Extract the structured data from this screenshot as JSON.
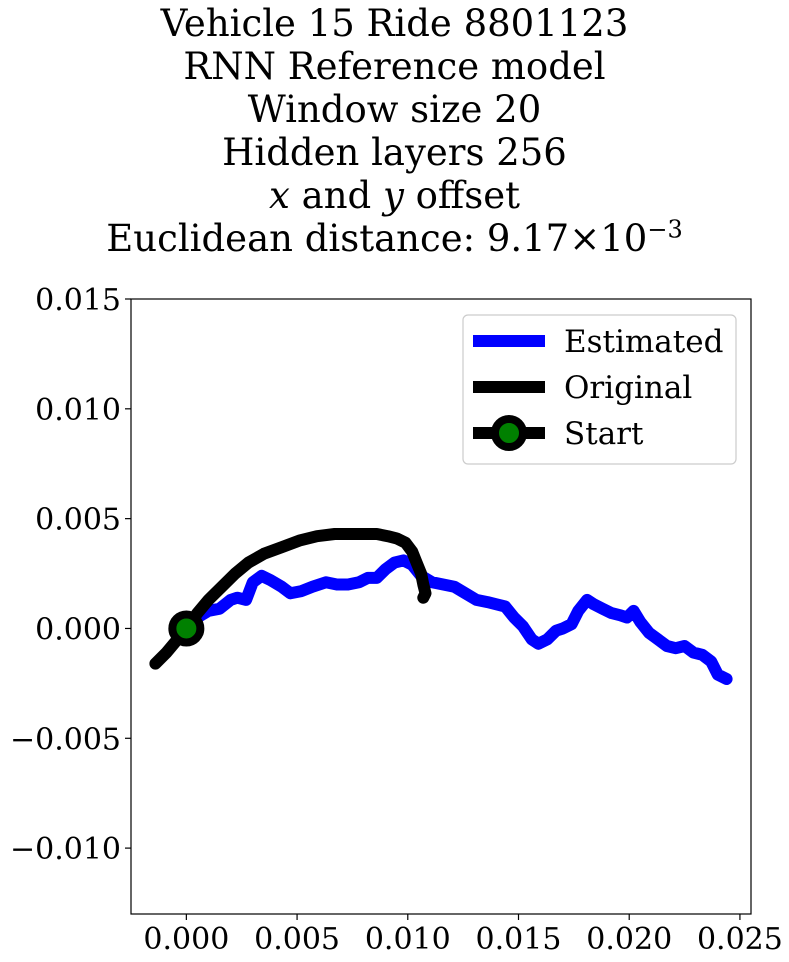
{
  "chart_data": {
    "type": "line",
    "title_lines": [
      "Vehicle 15 Ride 8801123",
      "RNN Reference model",
      "Window size 20",
      "Hidden layers 256"
    ],
    "title_offset_line": {
      "var1": "x",
      "conj": "and",
      "var2": "y",
      "word": "offset"
    },
    "title_distance": {
      "label": "Euclidean distance:",
      "mantissa": "9.17",
      "times": "×",
      "base": "10",
      "exponent": "−3"
    },
    "xlim": [
      -0.0025,
      0.0255
    ],
    "ylim": [
      -0.013,
      0.015
    ],
    "xticks": [
      0.0,
      0.005,
      0.01,
      0.015,
      0.02,
      0.025
    ],
    "xtick_labels": [
      "0.000",
      "0.005",
      "0.010",
      "0.015",
      "0.020",
      "0.025"
    ],
    "yticks": [
      -0.01,
      -0.005,
      0.0,
      0.005,
      0.01,
      0.015
    ],
    "ytick_labels": [
      "−0.010",
      "−0.005",
      "0.000",
      "0.005",
      "0.010",
      "0.015"
    ],
    "grid": false,
    "legend_position": "upper-right",
    "series": [
      {
        "name": "Estimated",
        "color": "#0000ff",
        "x": [
          0.0,
          0.0005,
          0.001,
          0.0015,
          0.002,
          0.0023,
          0.0027,
          0.003,
          0.0034,
          0.0038,
          0.0043,
          0.0047,
          0.0052,
          0.0057,
          0.0063,
          0.0068,
          0.0073,
          0.0078,
          0.0082,
          0.0086,
          0.009,
          0.0094,
          0.0098,
          0.0102,
          0.0106,
          0.0111,
          0.0116,
          0.0121,
          0.0126,
          0.0131,
          0.0136,
          0.014,
          0.0144,
          0.0148,
          0.0152,
          0.0156,
          0.0159,
          0.0163,
          0.0167,
          0.017,
          0.0174,
          0.0177,
          0.0181,
          0.0184,
          0.0188,
          0.0192,
          0.0196,
          0.0199,
          0.0202,
          0.0205,
          0.0209,
          0.0213,
          0.0217,
          0.0221,
          0.0225,
          0.0229,
          0.0233,
          0.0237,
          0.024,
          0.0244
        ],
        "y": [
          0.0,
          0.0005,
          0.0008,
          0.0009,
          0.0013,
          0.0014,
          0.0013,
          0.0021,
          0.0024,
          0.0022,
          0.0019,
          0.0016,
          0.0017,
          0.0019,
          0.0021,
          0.002,
          0.002,
          0.0021,
          0.0023,
          0.0023,
          0.0027,
          0.003,
          0.0031,
          0.0029,
          0.0024,
          0.0021,
          0.002,
          0.0019,
          0.0016,
          0.0013,
          0.0012,
          0.0011,
          0.001,
          0.0005,
          0.0001,
          -0.0005,
          -0.0007,
          -0.0005,
          -0.0001,
          0.0,
          0.0002,
          0.0008,
          0.0013,
          0.0011,
          0.0009,
          0.0007,
          0.0006,
          0.0005,
          0.0008,
          0.0003,
          -0.0002,
          -0.0005,
          -0.0008,
          -0.0009,
          -0.0008,
          -0.0011,
          -0.0012,
          -0.0015,
          -0.0021,
          -0.0023
        ]
      },
      {
        "name": "Original",
        "color": "#000000",
        "x": [
          -0.0014,
          -0.0009,
          -0.0004,
          0.0,
          0.0005,
          0.001,
          0.0016,
          0.0022,
          0.0028,
          0.0035,
          0.0043,
          0.0051,
          0.0059,
          0.0067,
          0.0074,
          0.008,
          0.0086,
          0.0091,
          0.0095,
          0.0099,
          0.0102,
          0.0104,
          0.0106,
          0.0107,
          0.0108,
          0.0107
        ],
        "y": [
          -0.0016,
          -0.0011,
          -0.0005,
          0.0,
          0.0007,
          0.0013,
          0.0019,
          0.0025,
          0.003,
          0.0034,
          0.0037,
          0.004,
          0.0042,
          0.0043,
          0.0043,
          0.0043,
          0.0043,
          0.0042,
          0.0041,
          0.0039,
          0.0035,
          0.003,
          0.0025,
          0.002,
          0.0016,
          0.0014
        ]
      }
    ],
    "start": {
      "name": "Start",
      "x": 0.0,
      "y": 0.0,
      "marker_face": "#008000",
      "marker_edge": "#000000"
    }
  }
}
